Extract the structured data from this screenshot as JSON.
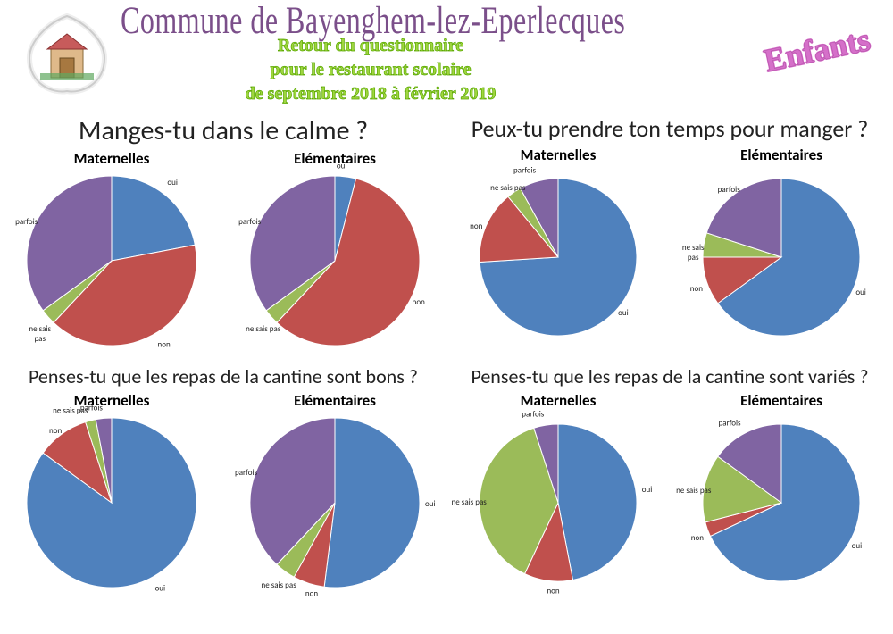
{
  "header": {
    "title": "Commune de Bayenghem-lez-Eperlecques",
    "subtitle_l1": "Retour du questionnaire",
    "subtitle_l2": "pour le restaurant scolaire",
    "subtitle_l3": "de septembre 2018 à février 2019",
    "badge": "Enfants"
  },
  "colors": {
    "oui": "#4f81bd",
    "non": "#c0504d",
    "parfois": "#8064a2",
    "ne_sais_pas": "#9bbb59",
    "background": "#ffffff"
  },
  "panels": [
    {
      "question": "Manges-tu dans le calme ?",
      "question_fontsize": 30,
      "charts": [
        {
          "subtitle": "Maternelles",
          "type": "pie",
          "radius": 95,
          "slices": [
            {
              "label": "oui",
              "value": 22,
              "color": "#4f81bd"
            },
            {
              "label": "non",
              "value": 40,
              "color": "#c0504d"
            },
            {
              "label": "ne sais\npas",
              "value": 3,
              "color": "#9bbb59"
            },
            {
              "label": "parfois",
              "value": 35,
              "color": "#8064a2"
            }
          ]
        },
        {
          "subtitle": "Elémentaires",
          "type": "pie",
          "radius": 95,
          "slices": [
            {
              "label": "oui",
              "value": 4,
              "color": "#4f81bd"
            },
            {
              "label": "non",
              "value": 58,
              "color": "#c0504d"
            },
            {
              "label": "ne sais pas",
              "value": 3,
              "color": "#9bbb59"
            },
            {
              "label": "parfois",
              "value": 35,
              "color": "#8064a2"
            }
          ]
        }
      ]
    },
    {
      "question": "Peux-tu prendre ton temps pour manger ?",
      "question_fontsize": 26,
      "charts": [
        {
          "subtitle": "Maternelles",
          "type": "pie",
          "radius": 88,
          "slices": [
            {
              "label": "oui",
              "value": 74,
              "color": "#4f81bd"
            },
            {
              "label": "non",
              "value": 15,
              "color": "#c0504d"
            },
            {
              "label": "ne sais pas",
              "value": 3,
              "color": "#9bbb59"
            },
            {
              "label": "parfois",
              "value": 8,
              "color": "#8064a2"
            }
          ]
        },
        {
          "subtitle": "Elémentaires",
          "type": "pie",
          "radius": 88,
          "slices": [
            {
              "label": "oui",
              "value": 65,
              "color": "#4f81bd"
            },
            {
              "label": "non",
              "value": 10,
              "color": "#c0504d"
            },
            {
              "label": "ne sais\npas",
              "value": 5,
              "color": "#9bbb59"
            },
            {
              "label": "parfois",
              "value": 20,
              "color": "#8064a2"
            }
          ]
        }
      ]
    },
    {
      "question": "Penses-tu que les repas de la cantine sont bons ?",
      "question_fontsize": 22,
      "charts": [
        {
          "subtitle": "Maternelles",
          "type": "pie",
          "radius": 95,
          "slices": [
            {
              "label": "oui",
              "value": 85,
              "color": "#4f81bd"
            },
            {
              "label": "non",
              "value": 10,
              "color": "#c0504d"
            },
            {
              "label": "ne sais pas",
              "value": 2,
              "color": "#9bbb59"
            },
            {
              "label": "parfois",
              "value": 3,
              "color": "#8064a2"
            }
          ]
        },
        {
          "subtitle": "Elémentaires",
          "type": "pie",
          "radius": 95,
          "slices": [
            {
              "label": "oui",
              "value": 52,
              "color": "#4f81bd"
            },
            {
              "label": "non",
              "value": 6,
              "color": "#c0504d"
            },
            {
              "label": "ne sais pas",
              "value": 4,
              "color": "#9bbb59"
            },
            {
              "label": "parfois",
              "value": 38,
              "color": "#8064a2"
            }
          ]
        }
      ]
    },
    {
      "question": "Penses-tu que les repas de la cantine sont variés ?",
      "question_fontsize": 22,
      "charts": [
        {
          "subtitle": "Maternelles",
          "type": "pie",
          "radius": 88,
          "slices": [
            {
              "label": "oui",
              "value": 47,
              "color": "#4f81bd"
            },
            {
              "label": "non",
              "value": 10,
              "color": "#c0504d"
            },
            {
              "label": "ne sais pas",
              "value": 38,
              "color": "#9bbb59"
            },
            {
              "label": "parfois",
              "value": 5,
              "color": "#8064a2"
            }
          ]
        },
        {
          "subtitle": "Elémentaires",
          "type": "pie",
          "radius": 88,
          "slices": [
            {
              "label": "oui",
              "value": 68,
              "color": "#4f81bd"
            },
            {
              "label": "non",
              "value": 3,
              "color": "#c0504d"
            },
            {
              "label": "ne sais pas",
              "value": 14,
              "color": "#9bbb59"
            },
            {
              "label": "parfois",
              "value": 15,
              "color": "#8064a2"
            }
          ]
        }
      ]
    }
  ]
}
